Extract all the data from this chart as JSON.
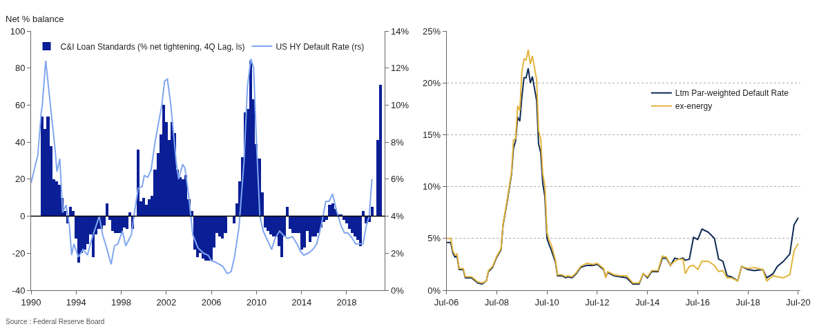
{
  "chart_data": [
    {
      "type": "bar",
      "ylabel": "Net % balance",
      "annotations": [
        "Source : Federal Reserve Board"
      ],
      "x": [
        1991,
        1991.25,
        1991.5,
        1991.75,
        1992,
        1992.25,
        1992.5,
        1992.75,
        1993,
        1993.25,
        1993.5,
        1993.75,
        1994,
        1994.25,
        1994.5,
        1994.75,
        1995,
        1995.25,
        1995.5,
        1995.75,
        1996,
        1996.25,
        1996.5,
        1996.75,
        1997,
        1997.25,
        1997.5,
        1997.75,
        1998,
        1998.25,
        1998.5,
        1998.75,
        1999,
        1999.25,
        1999.5,
        1999.75,
        2000,
        2000.25,
        2000.5,
        2000.75,
        2001,
        2001.25,
        2001.5,
        2001.75,
        2002,
        2002.25,
        2002.5,
        2002.75,
        2003,
        2003.25,
        2003.5,
        2003.75,
        2004,
        2004.25,
        2004.5,
        2004.75,
        2005,
        2005.25,
        2005.5,
        2005.75,
        2006,
        2006.25,
        2006.5,
        2006.75,
        2007,
        2007.25,
        2007.5,
        2007.75,
        2008,
        2008.25,
        2008.5,
        2008.75,
        2009,
        2009.25,
        2009.5,
        2009.75,
        2010,
        2010.25,
        2010.5,
        2010.75,
        2011,
        2011.25,
        2011.5,
        2011.75,
        2012,
        2012.25,
        2012.5,
        2012.75,
        2013,
        2013.25,
        2013.5,
        2013.75,
        2014,
        2014.25,
        2014.5,
        2014.75,
        2015,
        2015.25,
        2015.5,
        2015.75,
        2016,
        2016.25,
        2016.5,
        2016.75,
        2017,
        2017.25,
        2017.5,
        2017.75,
        2018,
        2018.25,
        2018.5,
        2018.75,
        2019,
        2019.25,
        2019.5,
        2019.75,
        2020,
        2020.25,
        2020.5,
        2020.75,
        2021
      ],
      "series": [
        {
          "name": "C&I Loan Standards (% net tightening, 4Q Lag, ls)",
          "color": "#0a1e96",
          "values": [
            54,
            47,
            54,
            38,
            20,
            19,
            17,
            10,
            3,
            -4,
            5,
            3,
            -12,
            -25,
            -20,
            -18,
            -15,
            -10,
            -22,
            -10,
            -7,
            -7,
            -5,
            7,
            -2,
            -8,
            -9,
            -9,
            -9,
            -6,
            -7,
            2,
            -7,
            null,
            36,
            8,
            10,
            6,
            9,
            11,
            25,
            34,
            44,
            60,
            51,
            41,
            51,
            45,
            25,
            21,
            20,
            22,
            9,
            3,
            -18,
            -22,
            -20,
            -23,
            -24,
            -24,
            -24,
            -17,
            -9,
            -11,
            -12,
            -9,
            null,
            null,
            -4,
            7,
            19,
            32,
            56,
            58,
            84,
            63,
            39,
            31,
            13,
            -6,
            -8,
            -10,
            -11,
            -11,
            -16,
            -22,
            -11,
            5,
            -7,
            -9,
            -9,
            -9,
            -18,
            -17,
            -8,
            -14,
            -11,
            -11,
            -9,
            -6,
            -3,
            -2,
            6,
            7,
            4,
            1,
            1,
            -2,
            -4,
            -7,
            -9,
            -11,
            -13,
            -16,
            3,
            -4,
            -3,
            5,
            null,
            41,
            71
          ]
        },
        {
          "name": "US HY Default Rate (rs)",
          "type": "line",
          "axis": "y2",
          "color": "#7fa6f0",
          "x": [
            1990,
            1990.6,
            1990.9,
            1991,
            1991.3,
            1991.8,
            1992.1,
            1992.3,
            1992.55,
            1992.8,
            1993.1,
            1993.4,
            1993.6,
            1993.8,
            1994.2,
            1994.6,
            1995,
            1995.4,
            1996.05,
            1996.35,
            1996.7,
            1997.1,
            1997.4,
            1997.7,
            1998.1,
            1998.4,
            1998.9,
            1999.2,
            1999.5,
            1999.85,
            2000.05,
            2000.35,
            2000.65,
            2001,
            2001.6,
            2001.85,
            2002.1,
            2002.4,
            2002.9,
            2003.1,
            2003.45,
            2003.65,
            2003.95,
            2004.35,
            2004.8,
            2005.3,
            2005.7,
            2006,
            2006.4,
            2007,
            2007.4,
            2007.75,
            2008.05,
            2008.45,
            2008.9,
            2009.2,
            2009.5,
            2009.75,
            2010,
            2010.3,
            2010.6,
            2010.9,
            2011.35,
            2011.65,
            2012.05,
            2012.35,
            2012.75,
            2013.2,
            2013.6,
            2013.9,
            2014.2,
            2014.6,
            2015,
            2015.35,
            2015.75,
            2016.15,
            2016.45,
            2016.75,
            2017.1,
            2017.5,
            2017.8,
            2018.1,
            2018.5,
            2018.8,
            2019.1,
            2019.45,
            2019.75,
            2020,
            2020.25
          ],
          "values": [
            5.8,
            7.3,
            9.6,
            10.0,
            12.4,
            9.5,
            7.8,
            6.4,
            7.1,
            4.2,
            4.6,
            3.5,
            1.9,
            2.5,
            1.8,
            2.2,
            1.9,
            2.8,
            4.0,
            3.0,
            2.3,
            1.4,
            2.4,
            2.5,
            3.2,
            2.4,
            3.0,
            4.3,
            5.5,
            5.6,
            6.2,
            6.1,
            6.5,
            8.0,
            10.0,
            11.3,
            11.4,
            10.0,
            6.8,
            6.0,
            6.8,
            6.6,
            5.3,
            3.0,
            2.3,
            2.0,
            1.9,
            1.6,
            1.5,
            1.3,
            0.9,
            1.0,
            1.8,
            3.4,
            7.0,
            11.0,
            12.5,
            12.0,
            8.0,
            4.0,
            3.2,
            2.8,
            2.2,
            2.8,
            3.2,
            3.0,
            2.8,
            2.9,
            2.5,
            2.1,
            1.9,
            2.0,
            2.2,
            2.5,
            3.5,
            4.8,
            4.8,
            5.2,
            4.3,
            3.5,
            3.1,
            3.1,
            2.8,
            2.5,
            2.5,
            2.5,
            3.5,
            4.0,
            6.0
          ]
        }
      ],
      "xlim": [
        1990,
        2021.4
      ],
      "xticks": [
        1990,
        1994,
        1998,
        2002,
        2006,
        2010,
        2014,
        2018
      ],
      "ylim": [
        -40,
        100
      ],
      "yticks": [
        -40,
        -20,
        0,
        20,
        40,
        60,
        80,
        100
      ],
      "y2lim": [
        0,
        14
      ],
      "y2ticks": [
        {
          "value": 0,
          "label": "0%"
        },
        {
          "value": 2,
          "label": "2%"
        },
        {
          "value": 4,
          "label": "4%"
        },
        {
          "value": 6,
          "label": "6%"
        },
        {
          "value": 8,
          "label": "8%"
        },
        {
          "value": 10,
          "label": "10%"
        },
        {
          "value": 12,
          "label": "12%"
        },
        {
          "value": 14,
          "label": "14%"
        }
      ],
      "legend": "top",
      "ref_lines": [
        {
          "axis": "y",
          "value": 0,
          "color": "#000000"
        }
      ]
    },
    {
      "type": "line",
      "x": [
        "2006-07",
        "2006-09",
        "2006-10",
        "2006-11",
        "2006-12",
        "2007-01",
        "2007-03",
        "2007-04",
        "2007-07",
        "2007-10",
        "2007-12",
        "2008-02",
        "2008-03",
        "2008-05",
        "2008-07",
        "2008-09",
        "2008-10",
        "2008-12",
        "2009-02",
        "2009-03",
        "2009-04",
        "2009-05",
        "2009-06",
        "2009-07",
        "2009-08",
        "2009-09",
        "2009-10",
        "2009-11",
        "2009-12",
        "2010-02",
        "2010-03",
        "2010-04",
        "2010-05",
        "2010-06",
        "2010-07",
        "2010-08",
        "2010-09",
        "2010-11",
        "2010-12",
        "2011-02",
        "2011-04",
        "2011-05",
        "2011-07",
        "2011-09",
        "2011-11",
        "2012-02",
        "2012-05",
        "2012-07",
        "2012-10",
        "2012-11",
        "2012-12",
        "2013-03",
        "2013-06",
        "2013-09",
        "2013-12",
        "2014-03",
        "2014-05",
        "2014-07",
        "2014-09",
        "2014-12",
        "2015-02",
        "2015-04",
        "2015-06",
        "2015-08",
        "2015-10",
        "2015-12",
        "2016-01",
        "2016-03",
        "2016-05",
        "2016-07",
        "2016-09",
        "2016-11",
        "2016-12",
        "2017-03",
        "2017-05",
        "2017-07",
        "2017-09",
        "2017-11",
        "2018-02",
        "2018-04",
        "2018-07",
        "2018-10",
        "2019-02",
        "2019-04",
        "2019-07",
        "2019-09",
        "2019-12",
        "2020-03",
        "2020-05",
        "2020-07"
      ],
      "series": [
        {
          "name": "Ltm Par-weighted Default Rate",
          "color": "#0d2a52",
          "values": [
            4.6,
            4.6,
            3.6,
            3.2,
            3.3,
            2.0,
            2.0,
            1.2,
            1.2,
            0.7,
            0.6,
            0.9,
            1.8,
            2.2,
            3.2,
            3.9,
            6.3,
            8.6,
            11.2,
            13.7,
            14.4,
            16.7,
            16.3,
            18.6,
            20.5,
            20.5,
            21.4,
            20.0,
            20.6,
            18.3,
            14.1,
            13.3,
            10.3,
            9.0,
            5.0,
            4.4,
            3.9,
            2.7,
            1.4,
            1.4,
            1.2,
            1.3,
            1.2,
            1.6,
            2.2,
            2.4,
            2.4,
            2.5,
            2.0,
            1.3,
            1.7,
            1.4,
            1.3,
            1.2,
            0.6,
            0.6,
            1.6,
            1.2,
            1.8,
            1.8,
            3.1,
            3.1,
            2.4,
            3.1,
            3.0,
            3.1,
            2.9,
            3.0,
            5.1,
            4.9,
            5.9,
            5.7,
            5.6,
            5.0,
            3.0,
            2.8,
            1.4,
            1.3,
            0.9,
            2.3,
            2.0,
            1.9,
            2.0,
            1.2,
            1.6,
            2.3,
            2.8,
            3.5,
            6.3,
            7.0
          ]
        },
        {
          "name": "ex-energy",
          "color": "#e2b33c",
          "values": [
            5.0,
            5.0,
            3.8,
            3.4,
            3.5,
            2.1,
            2.1,
            1.3,
            1.3,
            0.8,
            0.7,
            0.9,
            1.9,
            2.3,
            3.3,
            4.0,
            6.4,
            8.8,
            11.4,
            14.5,
            14.6,
            17.8,
            17.3,
            21.1,
            22.3,
            22.2,
            23.2,
            21.8,
            22.6,
            20.3,
            15.4,
            14.6,
            11.2,
            10.1,
            5.6,
            4.8,
            4.4,
            2.9,
            1.5,
            1.5,
            1.3,
            1.4,
            1.3,
            1.7,
            2.3,
            2.6,
            2.5,
            2.6,
            2.1,
            1.2,
            1.8,
            1.5,
            1.4,
            1.4,
            0.7,
            0.7,
            1.6,
            1.3,
            1.9,
            1.9,
            3.3,
            3.2,
            2.4,
            2.8,
            3.0,
            3.0,
            1.6,
            2.3,
            2.4,
            2.0,
            2.8,
            2.8,
            2.8,
            2.4,
            1.8,
            1.9,
            1.2,
            1.2,
            0.9,
            2.3,
            2.1,
            2.2,
            2.0,
            0.9,
            1.4,
            1.3,
            1.2,
            1.5,
            3.8,
            4.5
          ]
        }
      ],
      "xlim": [
        "2006-07",
        "2020-08"
      ],
      "xticks": [
        {
          "value": "2006-07",
          "label": "Jul-06"
        },
        {
          "value": "2008-07",
          "label": "Jul-08"
        },
        {
          "value": "2010-07",
          "label": "Jul-10"
        },
        {
          "value": "2012-07",
          "label": "Jul-12"
        },
        {
          "value": "2014-07",
          "label": "Jul-14"
        },
        {
          "value": "2016-07",
          "label": "Jul-16"
        },
        {
          "value": "2018-07",
          "label": "Jul-18"
        },
        {
          "value": "2020-07",
          "label": "Jul-20"
        }
      ],
      "ylim": [
        0,
        25
      ],
      "yticks": [
        {
          "value": 0,
          "label": "0%"
        },
        {
          "value": 5,
          "label": "5%"
        },
        {
          "value": 10,
          "label": "10%"
        },
        {
          "value": 15,
          "label": "15%"
        },
        {
          "value": 20,
          "label": "20%"
        },
        {
          "value": 25,
          "label": "25%"
        }
      ],
      "grid": "y",
      "legend": "right"
    }
  ]
}
